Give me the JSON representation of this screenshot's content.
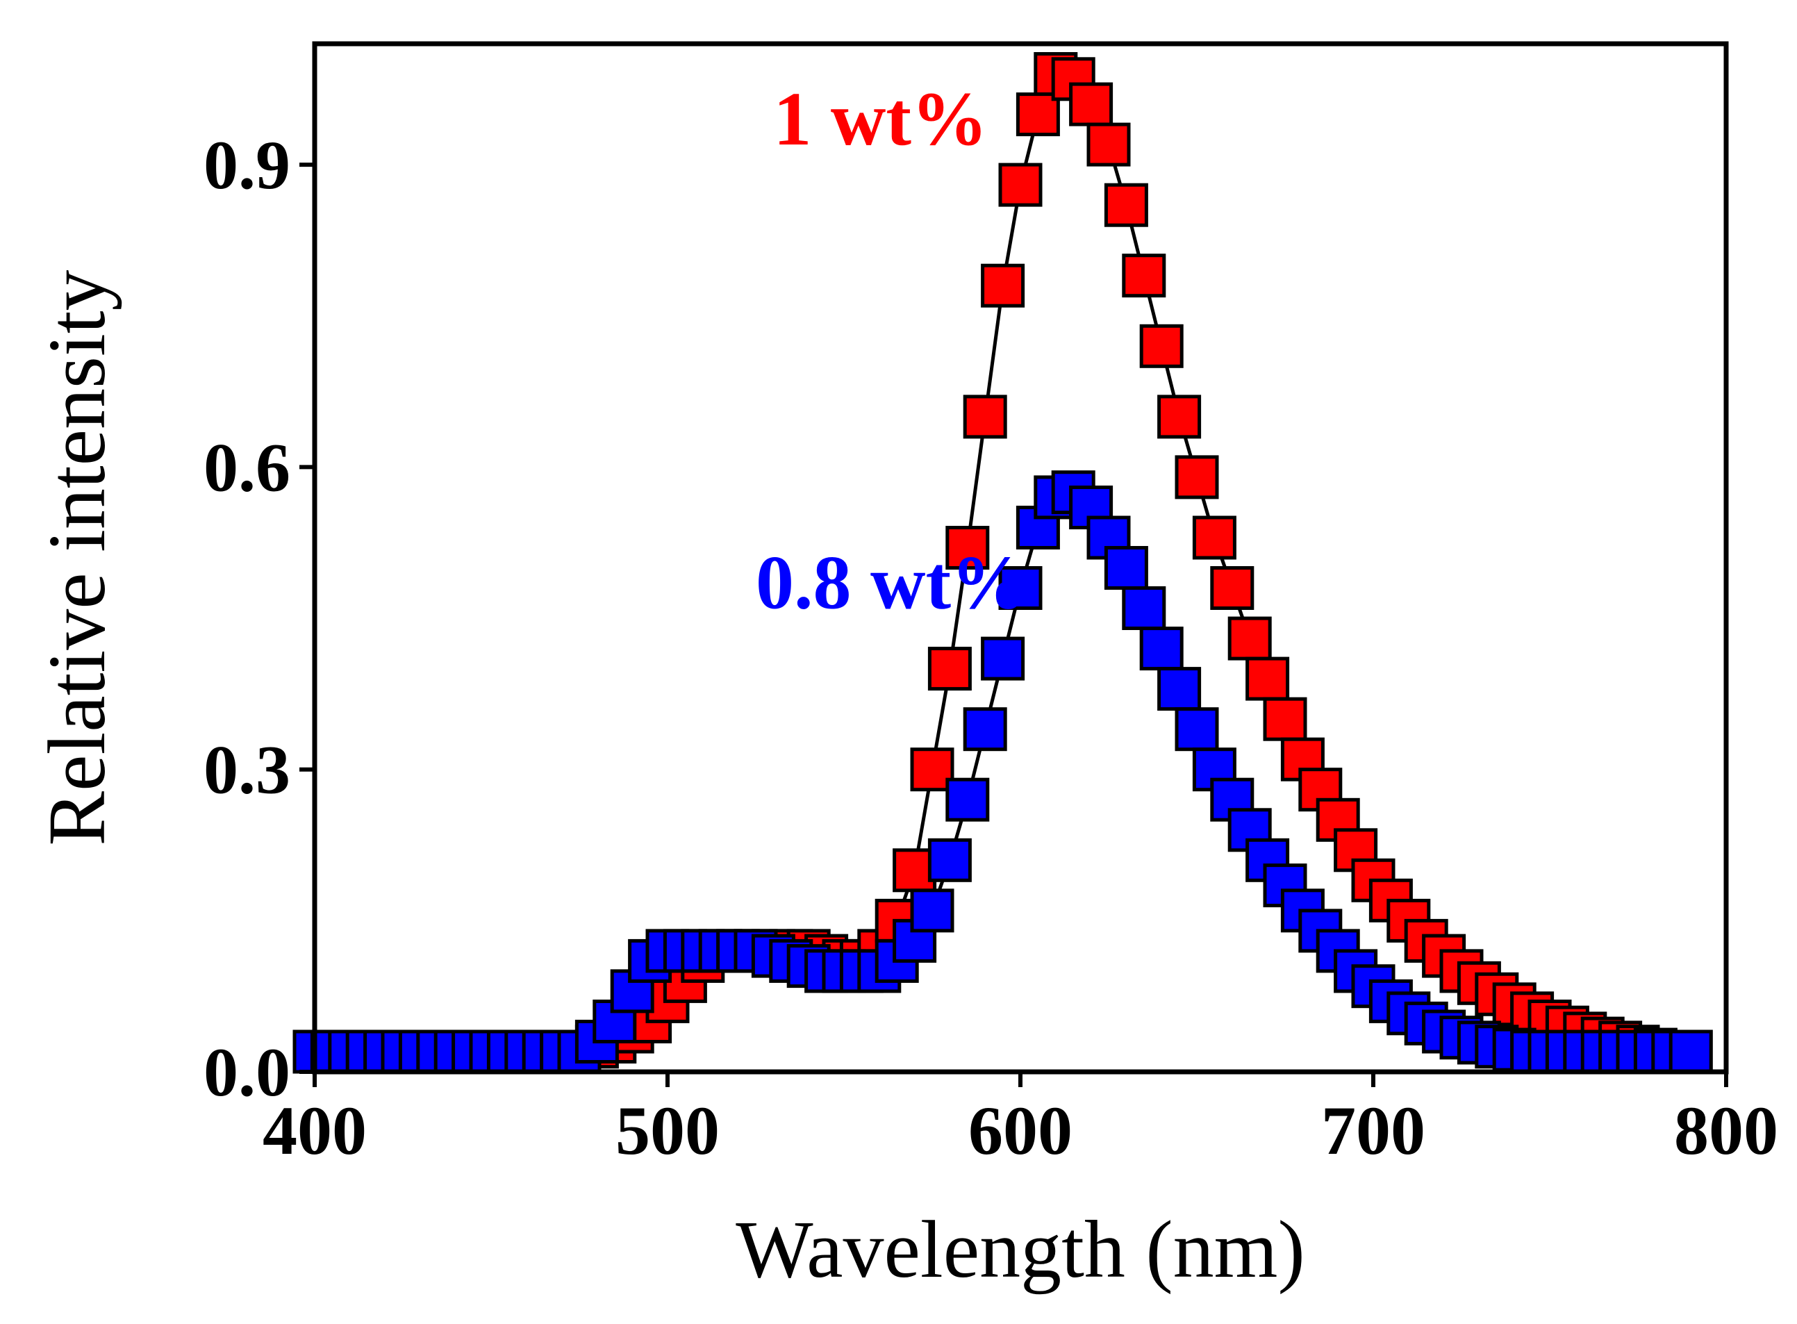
{
  "chart_data": {
    "type": "scatter",
    "title": "",
    "xlabel": "Wavelength (nm)",
    "ylabel": "Relative intensity",
    "xlim": [
      400,
      800
    ],
    "ylim": [
      0,
      1.02
    ],
    "xticks": [
      400,
      500,
      600,
      700,
      800
    ],
    "xtick_labels": [
      "400",
      "500",
      "600",
      "700",
      "800"
    ],
    "yticks": [
      0.0,
      0.3,
      0.6,
      0.9
    ],
    "ytick_labels": [
      "0.0",
      "0.3",
      "0.6",
      "0.9"
    ],
    "grid": false,
    "series": [
      {
        "name": "1 wt%",
        "color": "#ff0000",
        "x": [
          400,
          405,
          410,
          415,
          420,
          425,
          430,
          435,
          440,
          445,
          450,
          455,
          460,
          465,
          470,
          475,
          480,
          485,
          490,
          495,
          500,
          505,
          510,
          515,
          520,
          525,
          530,
          535,
          540,
          545,
          550,
          555,
          560,
          565,
          570,
          575,
          580,
          585,
          590,
          595,
          600,
          605,
          610,
          615,
          620,
          625,
          630,
          635,
          640,
          645,
          650,
          655,
          660,
          665,
          670,
          675,
          680,
          685,
          690,
          695,
          700,
          705,
          710,
          715,
          720,
          725,
          730,
          735,
          740,
          745,
          750,
          755,
          760,
          765,
          770,
          775,
          780,
          785,
          790
        ],
        "values": [
          0.02,
          0.02,
          0.02,
          0.02,
          0.02,
          0.02,
          0.02,
          0.02,
          0.02,
          0.02,
          0.02,
          0.02,
          0.02,
          0.02,
          0.02,
          0.02,
          0.025,
          0.03,
          0.04,
          0.05,
          0.07,
          0.09,
          0.11,
          0.12,
          0.12,
          0.12,
          0.12,
          0.12,
          0.12,
          0.115,
          0.11,
          0.11,
          0.12,
          0.15,
          0.2,
          0.3,
          0.4,
          0.52,
          0.65,
          0.78,
          0.88,
          0.95,
          0.99,
          0.985,
          0.96,
          0.92,
          0.86,
          0.79,
          0.72,
          0.65,
          0.59,
          0.53,
          0.48,
          0.43,
          0.39,
          0.35,
          0.31,
          0.28,
          0.25,
          0.22,
          0.19,
          0.17,
          0.15,
          0.13,
          0.115,
          0.1,
          0.088,
          0.077,
          0.067,
          0.058,
          0.05,
          0.044,
          0.038,
          0.033,
          0.029,
          0.025,
          0.022,
          0.02,
          0.02
        ]
      },
      {
        "name": "0.8 wt%",
        "color": "#0000ff",
        "x": [
          400,
          405,
          410,
          415,
          420,
          425,
          430,
          435,
          440,
          445,
          450,
          455,
          460,
          465,
          470,
          475,
          480,
          485,
          490,
          495,
          500,
          505,
          510,
          515,
          520,
          525,
          530,
          535,
          540,
          545,
          550,
          555,
          560,
          565,
          570,
          575,
          580,
          585,
          590,
          595,
          600,
          605,
          610,
          615,
          620,
          625,
          630,
          635,
          640,
          645,
          650,
          655,
          660,
          665,
          670,
          675,
          680,
          685,
          690,
          695,
          700,
          705,
          710,
          715,
          720,
          725,
          730,
          735,
          740,
          745,
          750,
          755,
          760,
          765,
          770,
          775,
          780,
          785,
          790
        ],
        "values": [
          0.02,
          0.02,
          0.02,
          0.02,
          0.02,
          0.02,
          0.02,
          0.02,
          0.02,
          0.02,
          0.02,
          0.02,
          0.02,
          0.02,
          0.02,
          0.02,
          0.03,
          0.05,
          0.08,
          0.11,
          0.12,
          0.12,
          0.12,
          0.12,
          0.12,
          0.12,
          0.115,
          0.11,
          0.105,
          0.1,
          0.1,
          0.1,
          0.1,
          0.11,
          0.13,
          0.16,
          0.21,
          0.27,
          0.34,
          0.41,
          0.48,
          0.54,
          0.57,
          0.575,
          0.56,
          0.53,
          0.5,
          0.46,
          0.42,
          0.38,
          0.34,
          0.3,
          0.27,
          0.24,
          0.21,
          0.185,
          0.16,
          0.14,
          0.12,
          0.1,
          0.085,
          0.07,
          0.058,
          0.048,
          0.04,
          0.034,
          0.029,
          0.025,
          0.022,
          0.02,
          0.02,
          0.02,
          0.02,
          0.02,
          0.02,
          0.02,
          0.02,
          0.02,
          0.02
        ]
      }
    ],
    "annotations": [
      {
        "text": "1 wt%",
        "color": "#ff0000",
        "x": 530,
        "y": 0.92
      },
      {
        "text": "0.8 wt%",
        "color": "#0000ff",
        "x": 525,
        "y": 0.46
      }
    ]
  }
}
